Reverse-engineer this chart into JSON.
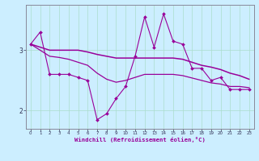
{
  "xlabel": "Windchill (Refroidissement éolien,°C)",
  "x": [
    0,
    1,
    2,
    3,
    4,
    5,
    6,
    7,
    8,
    9,
    10,
    11,
    12,
    13,
    14,
    15,
    16,
    17,
    18,
    19,
    20,
    21,
    22,
    23
  ],
  "line1": [
    3.1,
    3.3,
    2.6,
    2.6,
    2.6,
    2.55,
    2.5,
    1.85,
    1.95,
    2.2,
    2.4,
    2.9,
    3.55,
    3.05,
    3.6,
    3.15,
    3.1,
    2.7,
    2.7,
    2.5,
    2.55,
    2.35,
    2.35,
    2.35
  ],
  "line2": [
    3.1,
    3.05,
    3.0,
    3.0,
    3.0,
    3.0,
    2.97,
    2.93,
    2.9,
    2.87,
    2.87,
    2.87,
    2.87,
    2.87,
    2.87,
    2.87,
    2.85,
    2.8,
    2.75,
    2.72,
    2.68,
    2.62,
    2.58,
    2.52
  ],
  "line3": [
    3.1,
    3.0,
    2.9,
    2.88,
    2.85,
    2.8,
    2.75,
    2.62,
    2.52,
    2.47,
    2.5,
    2.55,
    2.6,
    2.6,
    2.6,
    2.6,
    2.58,
    2.54,
    2.5,
    2.46,
    2.44,
    2.4,
    2.4,
    2.38
  ],
  "line_color": "#990099",
  "bg_color": "#cceeff",
  "grid_color": "#aaddcc",
  "ylim": [
    1.7,
    3.75
  ],
  "yticks": [
    2,
    3
  ],
  "xticks": [
    0,
    1,
    2,
    3,
    4,
    5,
    6,
    7,
    8,
    9,
    10,
    11,
    12,
    13,
    14,
    15,
    16,
    17,
    18,
    19,
    20,
    21,
    22,
    23
  ]
}
